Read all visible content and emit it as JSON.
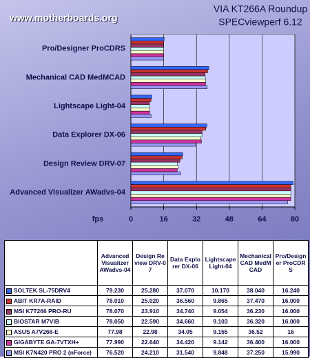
{
  "chart_data": {
    "type": "bar",
    "orientation": "horizontal",
    "title": "VIA KT266A Roundup",
    "subtitle": "SPECviewperf 6.12",
    "watermark": "www.motherboards.org",
    "xlabel": "fps",
    "categories": [
      "Advanced Visualizer AWadvs-04",
      "Design Review DRV-07",
      "Data Explorer DX-06",
      "Lightscape Light-04",
      "Mechanical CAD MedMCAD",
      "Pro/Designer ProCDRS"
    ],
    "series": [
      {
        "name": "SOLTEK SL-75DRV4",
        "color": "#3366ff",
        "values": [
          79.23,
          25.28,
          37.07,
          10.17,
          38.04,
          16.24
        ],
        "value_labels": [
          "79.230",
          "25.280",
          "37.070",
          "10.170",
          "38.040",
          "16.240"
        ]
      },
      {
        "name": "ABIT KR7A-RAID",
        "color": "#cc3333",
        "values": [
          78.01,
          25.02,
          36.56,
          9.865,
          37.47,
          16.0
        ],
        "value_labels": [
          "78.010",
          "25.020",
          "36.560",
          "9.865",
          "37.470",
          "16.000"
        ]
      },
      {
        "name": "MSI K7T266 PRO-RU",
        "color": "#993366",
        "values": [
          78.07,
          23.91,
          34.74,
          9.054,
          36.23,
          16.0
        ],
        "value_labels": [
          "78.070",
          "23.910",
          "34.740",
          "9.054",
          "36.230",
          "16.000"
        ]
      },
      {
        "name": "BIOSTAR M7VIB",
        "color": "#ccffff",
        "values": [
          78.05,
          22.59,
          34.66,
          9.103,
          36.32,
          16.0
        ],
        "value_labels": [
          "78.050",
          "22.590",
          "34.660",
          "9.103",
          "36.320",
          "16.000"
        ]
      },
      {
        "name": "ASUS A7V266-E",
        "color": "#ffffcc",
        "values": [
          77.98,
          22.98,
          34.05,
          9.155,
          36.52,
          16
        ],
        "value_labels": [
          "77.98",
          "22.98",
          "34.05",
          "9.155",
          "36.52",
          "16"
        ]
      },
      {
        "name": "GIGABYTE GA-7VTXH+",
        "color": "#cc3399",
        "values": [
          77.99,
          22.64,
          34.42,
          9.142,
          36.4,
          16.0
        ],
        "value_labels": [
          "77.990",
          "22.640",
          "34.420",
          "9.142",
          "36.400",
          "16.000"
        ]
      },
      {
        "name": "MSI K7N420 PRO 2 (nForce)",
        "color": "#9999ff",
        "values": [
          76.52,
          24.21,
          31.54,
          9.848,
          37.25,
          15.99
        ],
        "value_labels": [
          "76.520",
          "24.210",
          "31.540",
          "9.848",
          "37.250",
          "15.990"
        ]
      }
    ],
    "xlim": [
      0,
      80
    ],
    "xticks": [
      0,
      16,
      32,
      48,
      64,
      80
    ],
    "grid": true,
    "plot_background": "#ccccff"
  }
}
